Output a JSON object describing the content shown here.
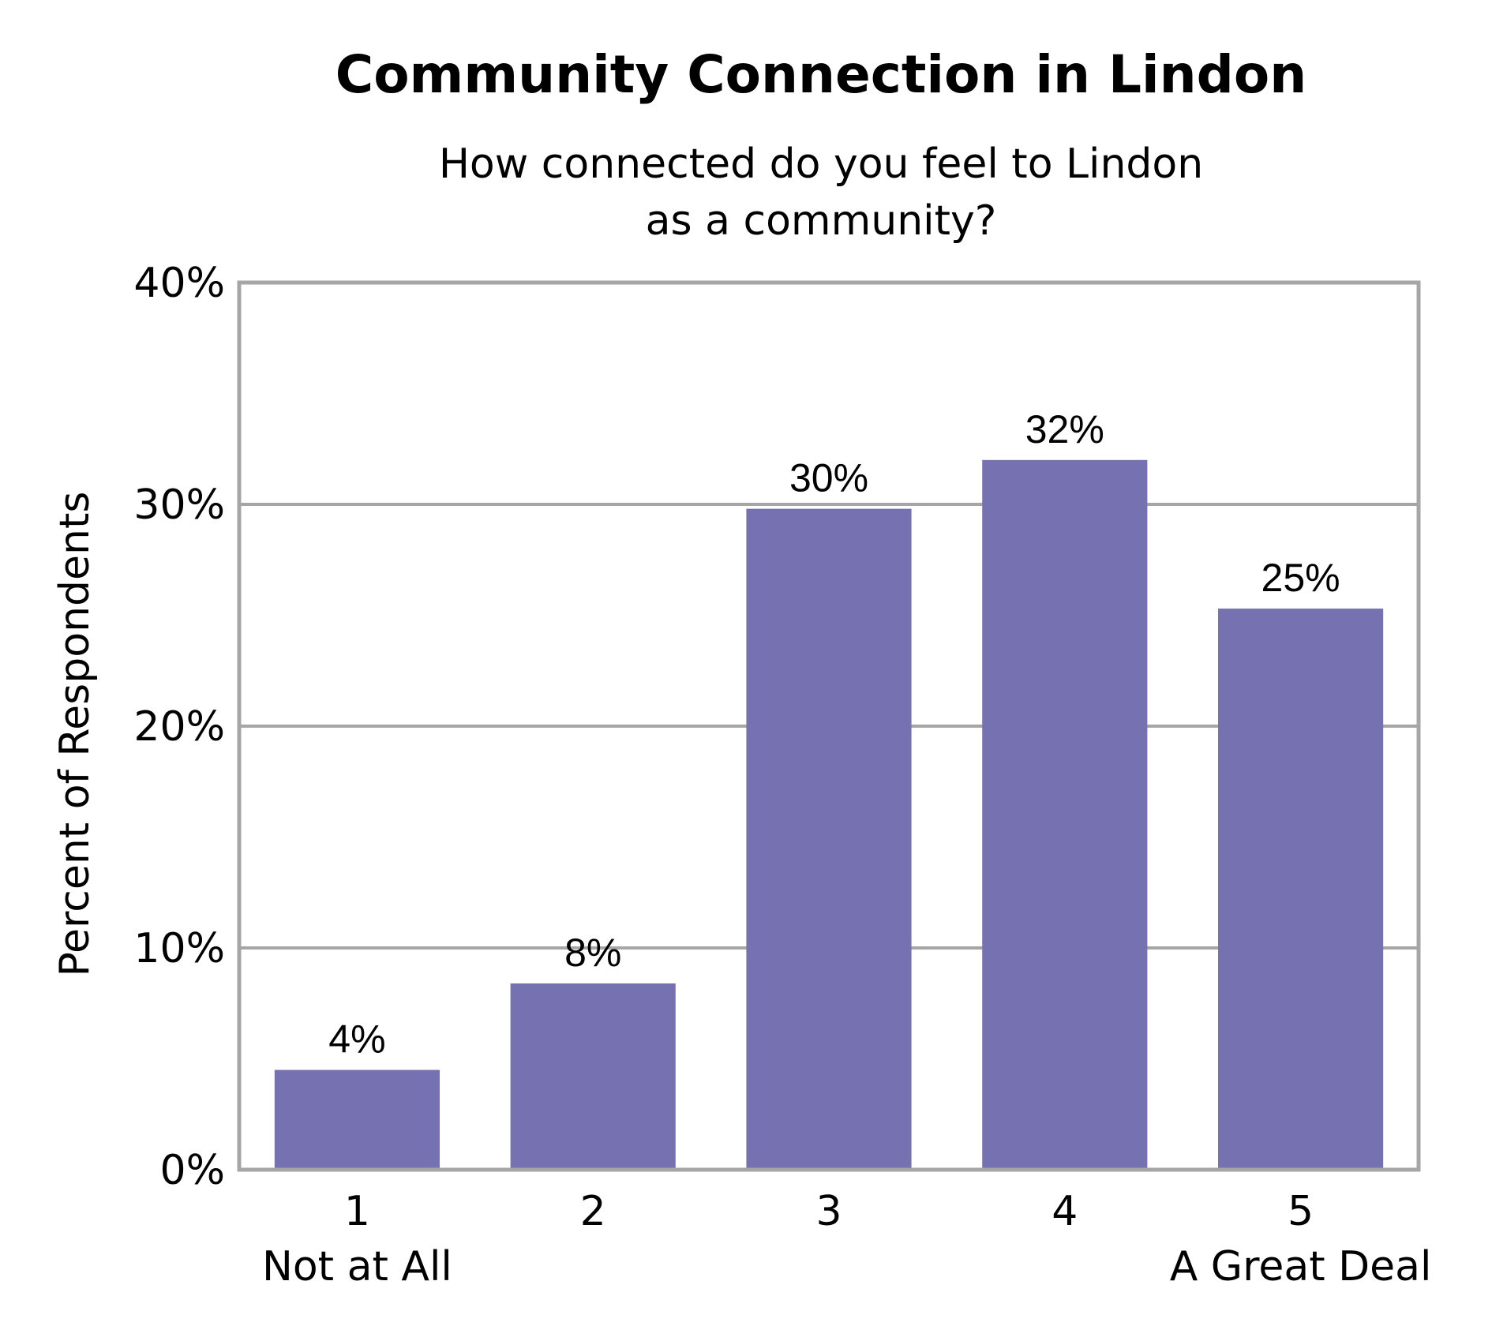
{
  "chart_data": {
    "type": "bar",
    "title": "Community Connection in Lindon",
    "subtitle": [
      "How connected do you feel to Lindon",
      "as a community?"
    ],
    "xlabel": "",
    "ylabel": "Percent of Respondents",
    "categories": [
      "1",
      "2",
      "3",
      "4",
      "5"
    ],
    "category_sublabels": [
      "Not at All",
      "",
      "",
      "",
      "A Great Deal"
    ],
    "values": [
      4.5,
      8.4,
      29.8,
      32.0,
      25.3
    ],
    "data_labels": [
      "4%",
      "8%",
      "30%",
      "32%",
      "25%"
    ],
    "ylim": [
      0,
      40
    ],
    "yticks": [
      0,
      10,
      20,
      30,
      40
    ],
    "ytick_labels": [
      "0%",
      "10%",
      "20%",
      "30%",
      "40%"
    ],
    "grid": true,
    "legend": "none",
    "colors": {
      "bar": "#7672b1",
      "grid": "#a6a6a6",
      "frame": "#a6a6a6"
    }
  }
}
